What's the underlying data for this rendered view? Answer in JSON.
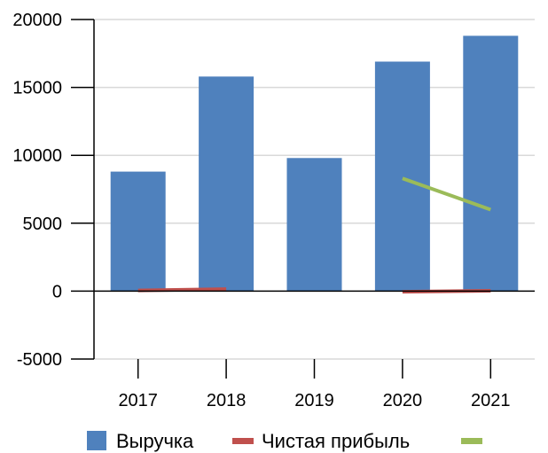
{
  "chart_data": {
    "type": "bar",
    "categories": [
      "2017",
      "2018",
      "2019",
      "2020",
      "2021"
    ],
    "ylim": [
      -5000,
      20000
    ],
    "yticks": [
      -5000,
      0,
      5000,
      10000,
      15000,
      20000
    ],
    "grid": true,
    "legend_position": "bottom",
    "series": [
      {
        "name": "Выручка",
        "kind": "bar",
        "color": "#4f81bd",
        "values": [
          8800,
          15800,
          9800,
          16900,
          18800
        ]
      },
      {
        "name": "Чистая прибыль",
        "kind": "line",
        "color": "#c0504d",
        "values": [
          50,
          150,
          null,
          -50,
          30
        ]
      },
      {
        "name": "",
        "kind": "line",
        "color": "#9bbb59",
        "values": [
          null,
          null,
          null,
          8300,
          6000
        ]
      }
    ]
  }
}
